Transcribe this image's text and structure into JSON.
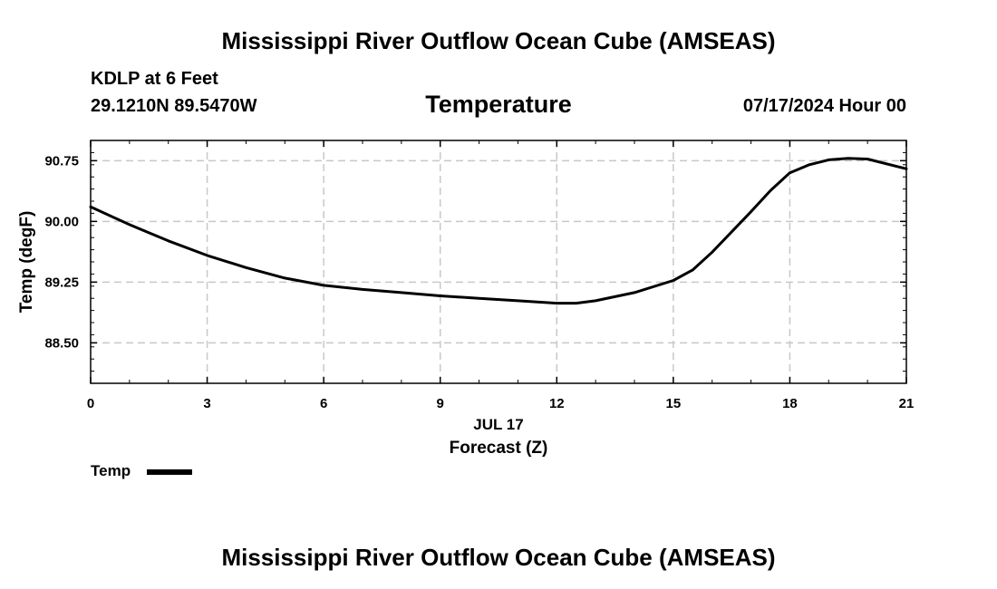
{
  "header": {
    "title": "Mississippi River Outflow Ocean Cube (AMSEAS)",
    "station": "KDLP at 6 Feet",
    "coords": "29.1210N  89.5470W",
    "subtitle": "Temperature",
    "datetime": "07/17/2024 Hour 00"
  },
  "footer": {
    "title": "Mississippi River Outflow Ocean Cube (AMSEAS)"
  },
  "legend": {
    "label": "Temp",
    "color": "#000000"
  },
  "colors": {
    "line": "#000000",
    "grid": "#c8c8c8",
    "frame": "#000000"
  },
  "chart_data": {
    "type": "line",
    "title": "Temperature",
    "xlabel": "Forecast (Z)",
    "xsublabel": "JUL 17",
    "ylabel": "Temp (degF)",
    "xlim": [
      0,
      21
    ],
    "ylim": [
      88.0,
      91.0
    ],
    "xticks": [
      0,
      3,
      6,
      9,
      12,
      15,
      18,
      21
    ],
    "xtick_labels": [
      "0",
      "3",
      "6",
      "9",
      "12",
      "15",
      "18",
      "21"
    ],
    "yticks": [
      88.5,
      89.25,
      90.0,
      90.75
    ],
    "ytick_labels": [
      "88.50",
      "89.25",
      "90.00",
      "90.75"
    ],
    "grid": true,
    "series": [
      {
        "name": "Temp",
        "x": [
          0,
          1,
          2,
          3,
          4,
          5,
          6,
          7,
          8,
          9,
          10,
          11,
          12,
          12.5,
          13,
          14,
          15,
          15.5,
          16,
          17,
          17.5,
          18,
          18.5,
          19,
          19.5,
          20,
          21
        ],
        "values": [
          90.18,
          89.96,
          89.76,
          89.58,
          89.43,
          89.3,
          89.21,
          89.16,
          89.12,
          89.08,
          89.05,
          89.02,
          88.99,
          88.99,
          89.02,
          89.12,
          89.27,
          89.4,
          89.62,
          90.12,
          90.38,
          90.6,
          90.7,
          90.76,
          90.78,
          90.77,
          90.65
        ]
      }
    ]
  }
}
